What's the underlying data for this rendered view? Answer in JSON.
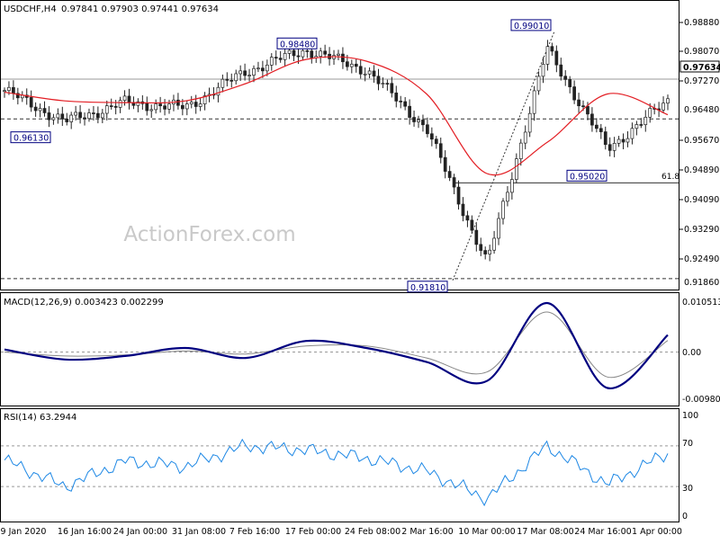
{
  "header": {
    "symbol": "USDCHF,H4",
    "ohlc": "0.97841 0.97903 0.97441 0.97634"
  },
  "watermark": "ActionForex.com",
  "price_scale": {
    "ticks": [
      "0.98880",
      "0.98070",
      "0.97270",
      "0.96480",
      "0.95670",
      "0.94890",
      "0.94090",
      "0.93290",
      "0.92490",
      "0.91860"
    ],
    "current_price": "0.97634"
  },
  "annotations": {
    "callouts": [
      "0.98480",
      "0.99010",
      "0.96130",
      "0.95020",
      "0.91810"
    ],
    "fib_label": "61.8"
  },
  "macd": {
    "header": "MACD(12,26,9) 0.003423 0.002299",
    "ticks": [
      "0.010513",
      "0.00",
      "-0.009804"
    ]
  },
  "rsi": {
    "header": "RSI(14) 63.2944",
    "ticks": [
      "100",
      "70",
      "30",
      "0"
    ]
  },
  "time_axis": [
    "9 Jan 2020",
    "16 Jan 16:00",
    "24 Jan 00:00",
    "31 Jan 08:00",
    "7 Feb 16:00",
    "17 Feb 00:00",
    "24 Feb 08:00",
    "2 Mar 16:00",
    "10 Mar 00:00",
    "17 Mar 08:00",
    "24 Mar 16:00",
    "1 Apr 00:00"
  ],
  "colors": {
    "ma_line": "#e31e24",
    "macd_line": "#000080",
    "signal_line": "#888888",
    "rsi_line": "#1e88e5",
    "candles": "#222222",
    "callout_border": "#000080"
  },
  "chart_data": [
    {
      "type": "line",
      "title": "USDCHF,H4",
      "x": [
        "9 Jan 2020",
        "16 Jan 16:00",
        "24 Jan 00:00",
        "31 Jan 08:00",
        "7 Feb 16:00",
        "17 Feb 00:00",
        "24 Feb 08:00",
        "2 Mar 16:00",
        "10 Mar 00:00",
        "17 Mar 08:00",
        "24 Mar 16:00",
        "1 Apr 00:00"
      ],
      "series": [
        {
          "values": [
            0.973,
            0.964,
            0.9695,
            0.968,
            0.9785,
            0.9848,
            0.979,
            0.962,
            0.923,
            0.985,
            0.956,
            0.97
          ]
        },
        {
          "values": [
            0.9725,
            0.97,
            0.9695,
            0.97,
            0.975,
            0.982,
            0.9815,
            0.972,
            0.949,
            0.958,
            0.972,
            0.966
          ]
        }
      ],
      "ylim": [
        0.917,
        0.9945
      ],
      "levels": [
        0.9648,
        0.9186,
        0.9463,
        0.9763
      ],
      "extremes": [
        0.9613,
        0.9848,
        0.9181,
        0.9901,
        0.9502
      ]
    },
    {
      "type": "line",
      "title": "MACD(12,26,9)",
      "series": [
        {
          "values": [
            0.0005,
            -0.0015,
            -0.0008,
            0.0008,
            -0.0012,
            0.0022,
            0.0008,
            -0.002,
            -0.0058,
            0.0098,
            -0.0072,
            0.0034
          ]
        },
        {
          "values": [
            0.0,
            -0.0008,
            -0.0006,
            0.0002,
            -0.0004,
            0.0012,
            0.0012,
            -0.0012,
            -0.004,
            0.008,
            -0.005,
            0.0023
          ]
        }
      ],
      "ylim": [
        -0.009804,
        0.010513
      ]
    },
    {
      "type": "line",
      "title": "RSI(14)",
      "series": [
        {
          "values": [
            56,
            30,
            55,
            50,
            70,
            66,
            58,
            45,
            18,
            70,
            32,
            63
          ]
        }
      ],
      "ylim": [
        0,
        100
      ],
      "levels": [
        70,
        30
      ]
    }
  ]
}
